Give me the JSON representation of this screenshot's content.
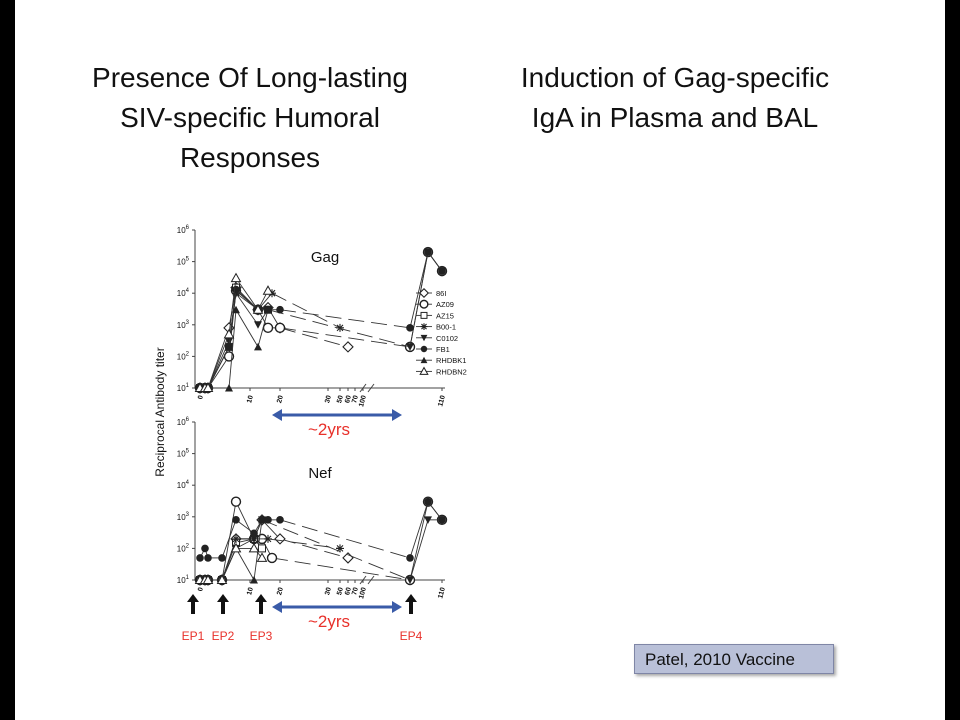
{
  "slide": {
    "title_left_lines": [
      "Presence Of Long-lasting",
      "SIV-specific Humoral",
      "Responses"
    ],
    "title_right_lines": [
      "Induction of Gag-specific",
      "IgA in Plasma and BAL"
    ],
    "citation": "Patel, 2010 Vaccine"
  },
  "colors": {
    "accent_red": "#e8312b",
    "arrow_blue": "#3a5ba8",
    "citation_bg": "#b9c0d8"
  },
  "chart_data": [
    {
      "type": "line",
      "panel": "Gag",
      "title": "Gag",
      "ylabel": "Reciprocal Antibody titer",
      "yscale": "log",
      "ylim": [
        10,
        1000000
      ],
      "ytick_exps": [
        "1",
        "2",
        "3",
        "4",
        "5",
        "6"
      ],
      "xtick_labels": [
        "0",
        "10",
        "20",
        "30",
        "50",
        "60",
        "70",
        "100",
        "110"
      ],
      "span_label": "~2yrs",
      "legend_position": "right",
      "series": [
        {
          "name": "86I",
          "marker": "diamond-open",
          "values": [
            [
              0,
              10
            ],
            [
              1,
              10
            ],
            [
              2,
              10
            ],
            [
              6,
              800
            ],
            [
              7,
              15000
            ],
            [
              11,
              3000
            ],
            [
              13,
              3500
            ],
            [
              15,
              800
            ],
            [
              21,
              200
            ]
          ]
        },
        {
          "name": "AZ09",
          "marker": "circle-open",
          "values": [
            [
              0,
              10
            ],
            [
              1,
              10
            ],
            [
              2,
              10
            ],
            [
              6,
              100
            ],
            [
              7,
              12000
            ],
            [
              11,
              3000
            ],
            [
              13,
              800
            ],
            [
              15,
              800
            ],
            [
              27,
              200
            ],
            [
              28,
              200000
            ],
            [
              29,
              50000
            ]
          ]
        },
        {
          "name": "AZ15",
          "marker": "square-open",
          "values": [
            [
              0,
              10
            ],
            [
              1,
              10
            ],
            [
              2,
              10
            ],
            [
              6,
              200
            ],
            [
              7,
              15000
            ],
            [
              11,
              3000
            ],
            [
              13,
              3000
            ]
          ]
        },
        {
          "name": "B00-1",
          "marker": "star",
          "values": [
            [
              0,
              10
            ],
            [
              1,
              10
            ],
            [
              2,
              10
            ],
            [
              6,
              200
            ],
            [
              7,
              10000
            ],
            [
              11,
              3000
            ],
            [
              14,
              10000
            ],
            [
              20,
              800
            ]
          ]
        },
        {
          "name": "C0102",
          "marker": "triangle-down-filled",
          "values": [
            [
              0,
              10
            ],
            [
              1,
              10
            ],
            [
              2,
              10
            ],
            [
              6,
              300
            ],
            [
              7,
              10000
            ],
            [
              11,
              1000
            ],
            [
              13,
              3000
            ],
            [
              27,
              200
            ],
            [
              28,
              200000
            ],
            [
              29,
              50000
            ]
          ]
        },
        {
          "name": "FB1",
          "marker": "circle-filled",
          "values": [
            [
              0,
              10
            ],
            [
              1,
              10
            ],
            [
              2,
              10
            ],
            [
              6,
              200
            ],
            [
              7,
              13000
            ],
            [
              11,
              3000
            ],
            [
              13,
              3000
            ],
            [
              15,
              3000
            ],
            [
              27,
              800
            ],
            [
              28,
              200000
            ],
            [
              29,
              50000
            ]
          ]
        },
        {
          "name": "RHDBK1",
          "marker": "triangle-up-filled",
          "values": [
            [
              0,
              10
            ],
            [
              1,
              10
            ],
            [
              2,
              10
            ],
            [
              6,
              10
            ],
            [
              7,
              3000
            ],
            [
              11,
              200
            ],
            [
              13,
              3000
            ]
          ]
        },
        {
          "name": "RHDBN2",
          "marker": "triangle-up-open",
          "values": [
            [
              0,
              10
            ],
            [
              1,
              10
            ],
            [
              2,
              10
            ],
            [
              6,
              500
            ],
            [
              7,
              30000
            ],
            [
              11,
              3000
            ],
            [
              13,
              12000
            ]
          ]
        }
      ]
    },
    {
      "type": "line",
      "panel": "Nef",
      "title": "Nef",
      "yscale": "log",
      "ylim": [
        10,
        1000000
      ],
      "ytick_exps": [
        "1",
        "2",
        "3",
        "4",
        "5",
        "6"
      ],
      "xtick_labels": [
        "0",
        "10",
        "20",
        "30",
        "50",
        "60",
        "70",
        "100",
        "110"
      ],
      "span_label": "~2yrs",
      "event_labels": [
        "EP1",
        "EP2",
        "EP3",
        "EP4"
      ],
      "series": [
        {
          "name": "86I",
          "marker": "diamond-open",
          "values": [
            [
              0,
              10
            ],
            [
              1,
              10
            ],
            [
              2,
              10
            ],
            [
              5,
              10
            ],
            [
              7,
              200
            ],
            [
              10,
              200
            ],
            [
              12,
              800
            ],
            [
              15,
              200
            ],
            [
              21,
              50
            ]
          ]
        },
        {
          "name": "AZ09",
          "marker": "circle-open",
          "values": [
            [
              0,
              10
            ],
            [
              1,
              10
            ],
            [
              2,
              10
            ],
            [
              5,
              10
            ],
            [
              7,
              3000
            ],
            [
              10,
              200
            ],
            [
              12,
              200
            ],
            [
              14,
              50
            ],
            [
              27,
              10
            ],
            [
              28,
              3000
            ],
            [
              29,
              800
            ]
          ]
        },
        {
          "name": "AZ15",
          "marker": "square-open",
          "values": [
            [
              0,
              10
            ],
            [
              1,
              10
            ],
            [
              2,
              10
            ],
            [
              5,
              10
            ],
            [
              7,
              150
            ],
            [
              10,
              200
            ],
            [
              12,
              100
            ]
          ]
        },
        {
          "name": "B00-1",
          "marker": "star",
          "values": [
            [
              0,
              10
            ],
            [
              1,
              10
            ],
            [
              2,
              10
            ],
            [
              5,
              10
            ],
            [
              7,
              200
            ],
            [
              10,
              200
            ],
            [
              13,
              200
            ],
            [
              20,
              100
            ]
          ]
        },
        {
          "name": "C0102",
          "marker": "triangle-down-filled",
          "values": [
            [
              0,
              10
            ],
            [
              1,
              10
            ],
            [
              2,
              10
            ],
            [
              5,
              10
            ],
            [
              7,
              100
            ],
            [
              10,
              200
            ],
            [
              12,
              800
            ],
            [
              27,
              10
            ],
            [
              28,
              800
            ],
            [
              29,
              800
            ]
          ]
        },
        {
          "name": "FB1",
          "marker": "circle-filled",
          "values": [
            [
              0,
              50
            ],
            [
              1,
              100
            ],
            [
              2,
              50
            ],
            [
              5,
              50
            ],
            [
              7,
              800
            ],
            [
              10,
              300
            ],
            [
              12,
              800
            ],
            [
              13,
              800
            ],
            [
              15,
              800
            ],
            [
              27,
              50
            ],
            [
              28,
              3000
            ],
            [
              29,
              800
            ]
          ]
        },
        {
          "name": "RHDBK1",
          "marker": "triangle-up-filled",
          "values": [
            [
              0,
              10
            ],
            [
              1,
              10
            ],
            [
              2,
              10
            ],
            [
              5,
              10
            ],
            [
              7,
              100
            ],
            [
              10,
              10
            ],
            [
              12,
              800
            ]
          ]
        },
        {
          "name": "RHDBN2",
          "marker": "triangle-up-open",
          "values": [
            [
              0,
              10
            ],
            [
              1,
              10
            ],
            [
              2,
              10
            ],
            [
              5,
              10
            ],
            [
              7,
              100
            ],
            [
              10,
              100
            ],
            [
              12,
              50
            ]
          ]
        }
      ]
    }
  ]
}
